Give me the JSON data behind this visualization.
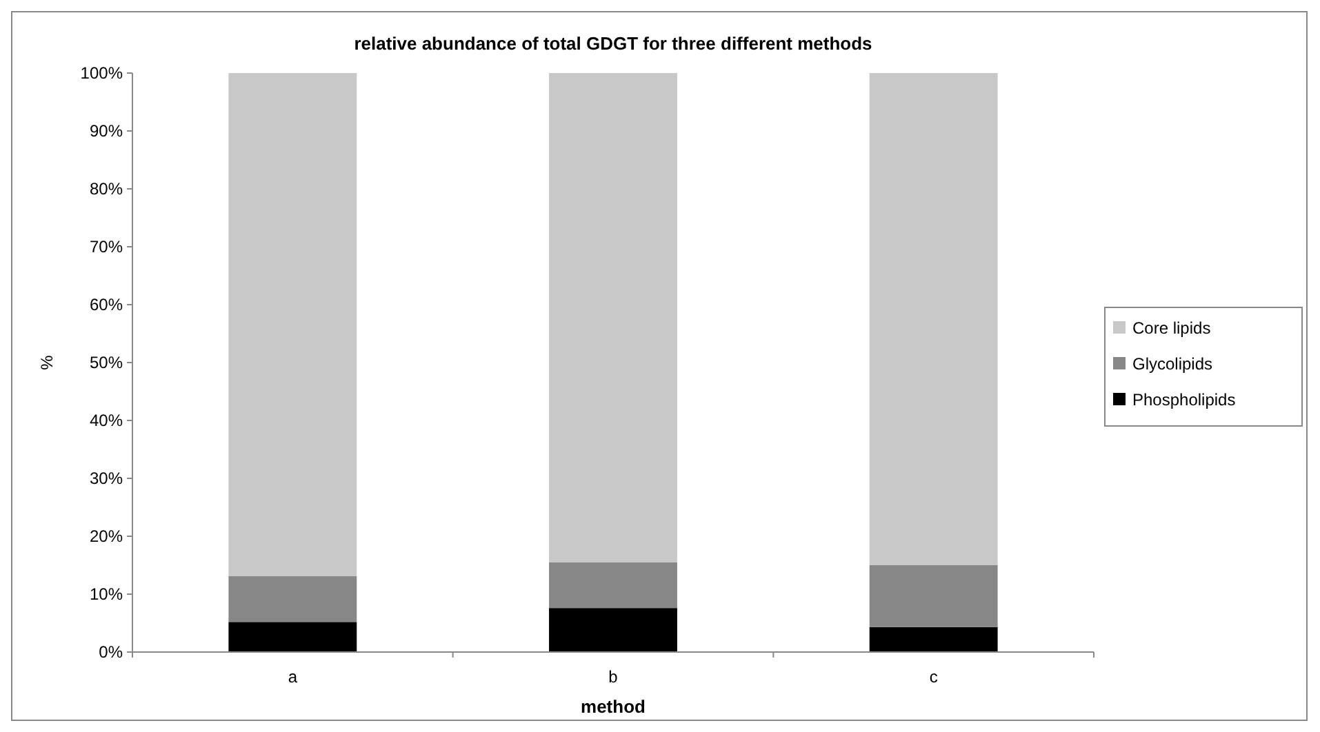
{
  "chart_data": {
    "type": "bar",
    "title": "relative abundance of total GDGT for three different methods",
    "xlabel": "method",
    "ylabel": "%",
    "categories": [
      "a",
      "b",
      "c"
    ],
    "stacked": true,
    "series": [
      {
        "name": "Phospholipids",
        "color": "#000000",
        "values": [
          5.2,
          7.6,
          4.3
        ]
      },
      {
        "name": "Glycolipids",
        "color": "#878787",
        "values": [
          7.9,
          7.9,
          10.7
        ]
      },
      {
        "name": "Core lipids",
        "color": "#c8c8c8",
        "values": [
          86.9,
          84.5,
          85.0
        ]
      }
    ],
    "ylim": [
      0,
      100
    ],
    "yticks": [
      {
        "value": 0,
        "label": "0%"
      },
      {
        "value": 10,
        "label": "10%"
      },
      {
        "value": 20,
        "label": "20%"
      },
      {
        "value": 30,
        "label": "30%"
      },
      {
        "value": 40,
        "label": "40%"
      },
      {
        "value": 50,
        "label": "50%"
      },
      {
        "value": 60,
        "label": "60%"
      },
      {
        "value": 70,
        "label": "70%"
      },
      {
        "value": 80,
        "label": "80%"
      },
      {
        "value": 90,
        "label": "90%"
      },
      {
        "value": 100,
        "label": "100%"
      }
    ],
    "grid": false,
    "legend": "right"
  }
}
